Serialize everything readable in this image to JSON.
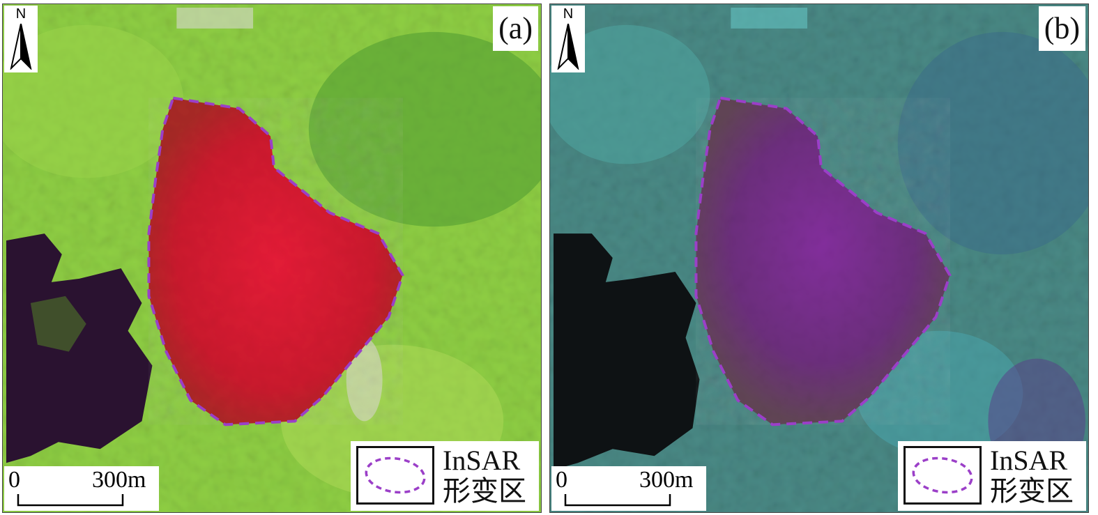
{
  "panels": [
    {
      "id": "a",
      "label": "(a)",
      "north_label": "N",
      "scale": {
        "start": "0",
        "end": "300m"
      },
      "legend": {
        "line1": "InSAR",
        "line2": "形变区"
      },
      "colors": {
        "vegetation": "#6fbf3a",
        "vegetation_light": "#a8d84a",
        "deformation_zone": "#c8142a",
        "water_dark": "#2a1230"
      }
    },
    {
      "id": "b",
      "label": "(b)",
      "north_label": "N",
      "scale": {
        "start": "0",
        "end": "300m"
      },
      "legend": {
        "line1": "InSAR",
        "line2": "形变区"
      },
      "colors": {
        "vegetation": "#3e6f6a",
        "vegetation_light": "#4fb5b5",
        "deformation_zone": "#6a2a7a",
        "water_dark": "#0e1214"
      }
    }
  ],
  "outline_color": "#9b3fc8"
}
